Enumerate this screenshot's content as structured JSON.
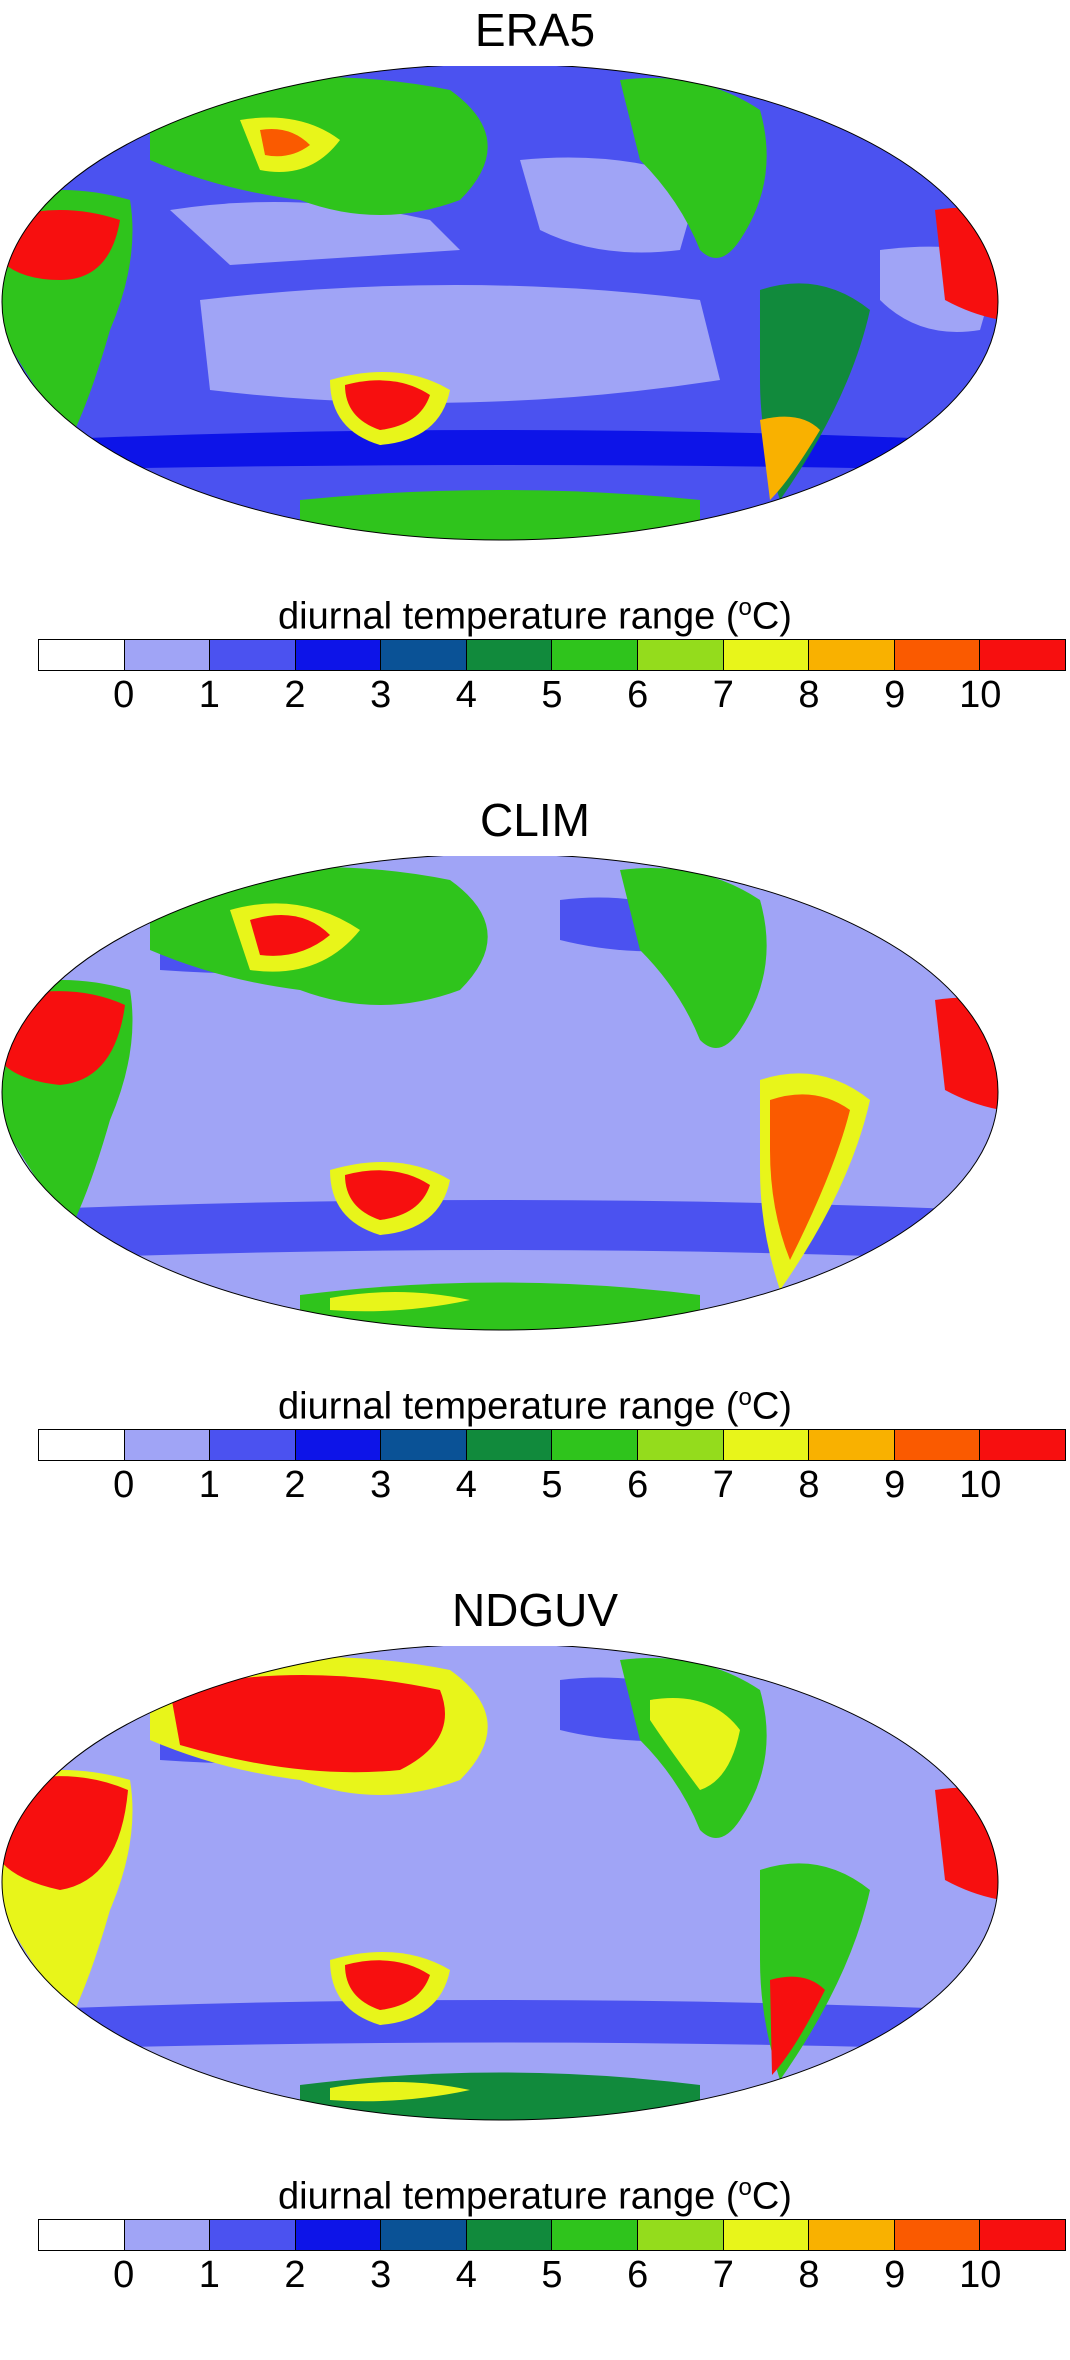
{
  "panels": [
    {
      "title": "ERA5"
    },
    {
      "title": "CLIM"
    },
    {
      "title": "NDGUV"
    }
  ],
  "colorbar": {
    "title_prefix": "diurnal temperature range (",
    "title_sup": "o",
    "title_suffix": "C)",
    "ticks": [
      "0",
      "1",
      "2",
      "3",
      "4",
      "5",
      "6",
      "7",
      "8",
      "9",
      "10"
    ],
    "colors": [
      "#ffffff",
      "#a0a4f6",
      "#4b52f0",
      "#0d14e8",
      "#0a5296",
      "#118a3c",
      "#2fc41c",
      "#94dc1c",
      "#e8f51a",
      "#f9b100",
      "#fa5a00",
      "#f70f0f"
    ]
  }
}
